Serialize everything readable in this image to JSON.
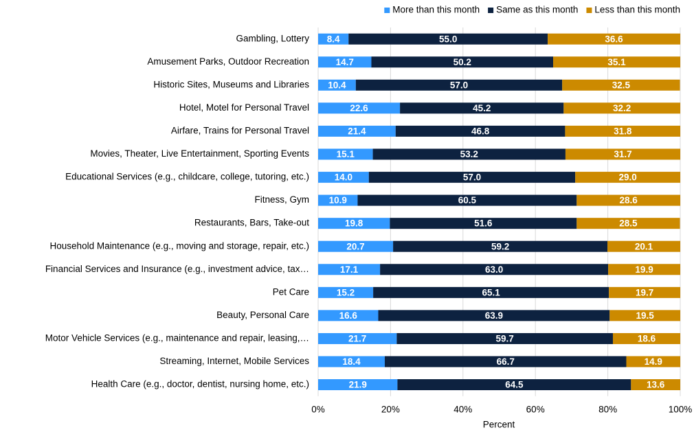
{
  "chart_data": {
    "type": "stacked-barh",
    "xlabel": "Percent",
    "categories": [
      "Gambling, Lottery",
      "Amusement Parks, Outdoor Recreation",
      "Historic Sites, Museums and Libraries",
      "Hotel, Motel for Personal Travel",
      "Airfare, Trains for Personal Travel",
      "Movies, Theater, Live Entertainment, Sporting Events",
      "Educational Services (e.g., childcare, college, tutoring, etc.)",
      "Fitness, Gym",
      "Restaurants, Bars, Take-out",
      "Household Maintenance (e.g., moving and storage, repair, etc.)",
      "Financial Services and Insurance (e.g., investment advice, tax…",
      "Pet Care",
      "Beauty, Personal Care",
      "Motor Vehicle Services (e.g., maintenance and repair, leasing,…",
      "Streaming, Internet, Mobile Services",
      "Health Care (e.g., doctor, dentist, nursing home, etc.)"
    ],
    "series": [
      {
        "name": "More than this month",
        "color": "#3399ff",
        "values": [
          8.4,
          14.7,
          10.4,
          22.6,
          21.4,
          15.1,
          14.0,
          10.9,
          19.8,
          20.7,
          17.1,
          15.2,
          16.6,
          21.7,
          18.4,
          21.9
        ],
        "value_labels": [
          "8.4",
          "14.7",
          "10.4",
          "22.6",
          "21.4",
          "15.1",
          "14.0",
          "10.9",
          "19.8",
          "20.7",
          "17.1",
          "15.2",
          "16.6",
          "21.7",
          "18.4",
          "21.9"
        ]
      },
      {
        "name": "Same as this month",
        "color": "#0d2240",
        "values": [
          55.0,
          50.2,
          57.0,
          45.2,
          46.8,
          53.2,
          57.0,
          60.5,
          51.6,
          59.2,
          63.0,
          65.1,
          63.9,
          59.7,
          66.7,
          64.5
        ],
        "value_labels": [
          "55.0",
          "50.2",
          "57.0",
          "45.2",
          "46.8",
          "53.2",
          "57.0",
          "60.5",
          "51.6",
          "59.2",
          "63.0",
          "65.1",
          "63.9",
          "59.7",
          "66.7",
          "64.5"
        ]
      },
      {
        "name": "Less than this month",
        "color": "#cc8a00",
        "values": [
          36.6,
          35.1,
          32.5,
          32.2,
          31.8,
          31.7,
          29.0,
          28.6,
          28.5,
          20.1,
          19.9,
          19.7,
          19.5,
          18.6,
          14.9,
          13.6
        ],
        "value_labels": [
          "36.6",
          "35.1",
          "32.5",
          "32.2",
          "31.8",
          "31.7",
          "29.0",
          "28.6",
          "28.5",
          "20.1",
          "19.9",
          "19.7",
          "19.5",
          "18.6",
          "14.9",
          "13.6"
        ]
      }
    ],
    "xlim": [
      0,
      100
    ],
    "xticks": [
      {
        "value": 0,
        "label": "0%"
      },
      {
        "value": 20,
        "label": "20%"
      },
      {
        "value": 40,
        "label": "40%"
      },
      {
        "value": 60,
        "label": "60%"
      },
      {
        "value": 80,
        "label": "80%"
      },
      {
        "value": 100,
        "label": "100%"
      }
    ],
    "grid": true,
    "legend": "top-right"
  }
}
